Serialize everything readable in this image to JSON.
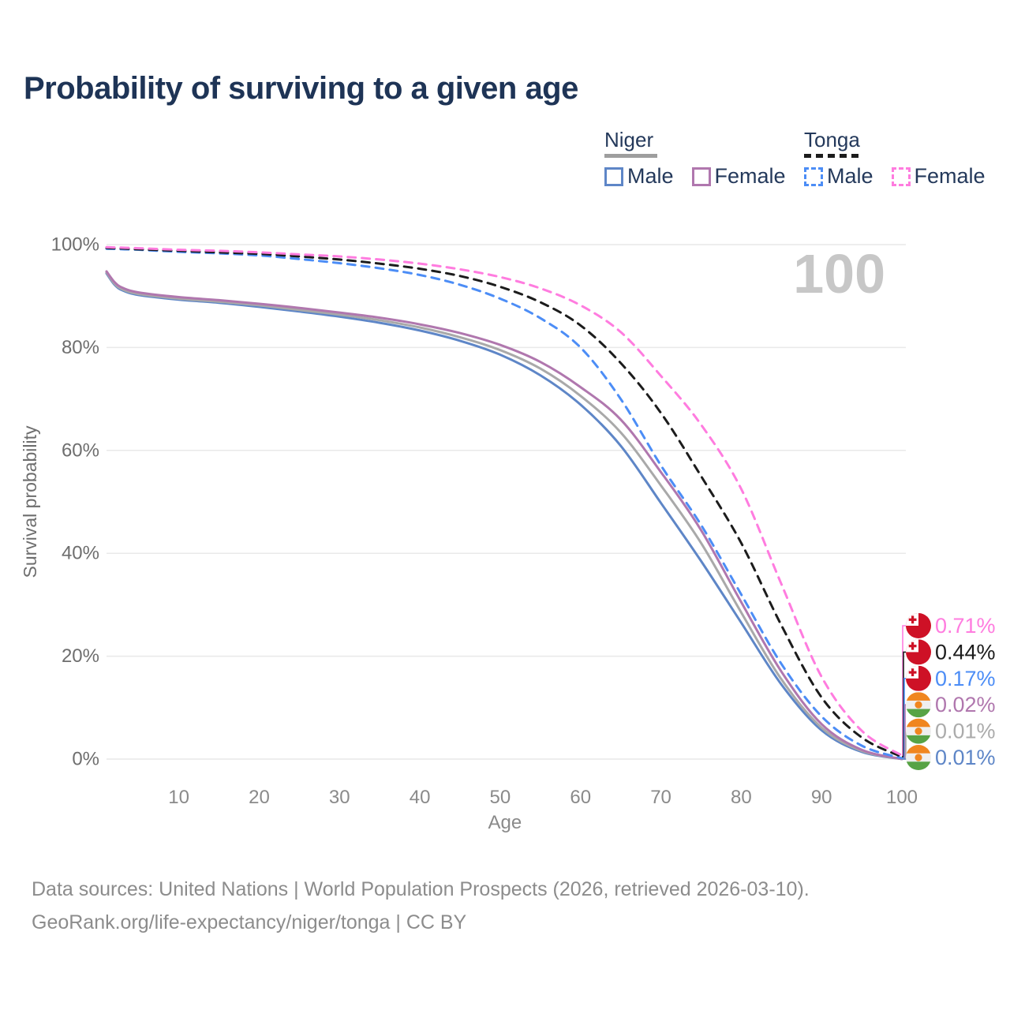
{
  "title": "Probability of surviving to a given age",
  "watermark": "100",
  "legend": {
    "groups": [
      {
        "id": "niger",
        "label": "Niger",
        "line_style": "solid",
        "rule_color": "#9E9E9E",
        "items": [
          {
            "id": "niger_male",
            "label": "Male",
            "color": "#5E86C7"
          },
          {
            "id": "niger_female",
            "label": "Female",
            "color": "#B077AE"
          }
        ]
      },
      {
        "id": "tonga",
        "label": "Tonga",
        "line_style": "dashed",
        "rule_color": "#1C1C1C",
        "items": [
          {
            "id": "tonga_male",
            "label": "Male",
            "color": "#4C8DF6"
          },
          {
            "id": "tonga_female",
            "label": "Female",
            "color": "#FF7CDF"
          }
        ]
      }
    ]
  },
  "footer": {
    "line1": "Data sources: United Nations | World Population Prospects (2026, retrieved 2026-03-10).",
    "line2": "GeoRank.org/life-expectancy/niger/tonga | CC BY"
  },
  "chart_data": {
    "type": "line",
    "title": "Probability of surviving to a given age",
    "xlabel": "Age",
    "ylabel": "Survival probability",
    "xlim": [
      1,
      100
    ],
    "ylim": [
      0,
      100
    ],
    "x_ticks": [
      10,
      20,
      30,
      40,
      50,
      60,
      70,
      80,
      90,
      100
    ],
    "y_ticks": [
      0,
      20,
      40,
      60,
      80,
      100
    ],
    "y_tick_suffix": "%",
    "grid": "horizontal",
    "highlighted_age": "100",
    "x": [
      1,
      2,
      3,
      5,
      10,
      15,
      20,
      25,
      30,
      35,
      40,
      45,
      50,
      55,
      60,
      65,
      70,
      75,
      80,
      85,
      90,
      95,
      100
    ],
    "series": [
      {
        "id": "niger_male",
        "name": "Niger Male",
        "color": "#5E86C7",
        "dash": false,
        "values": [
          94.4,
          92.2,
          91.1,
          90.2,
          89.3,
          88.7,
          87.9,
          87.0,
          86.0,
          84.8,
          83.3,
          81.3,
          78.6,
          74.6,
          68.9,
          60.9,
          49.8,
          38.5,
          26.5,
          14.5,
          5.6,
          1.4,
          0.01
        ]
      },
      {
        "id": "niger_both",
        "name": "Niger",
        "color": "#A9A9A9",
        "dash": false,
        "values": [
          94.6,
          92.4,
          91.3,
          90.4,
          89.5,
          88.9,
          88.2,
          87.3,
          86.4,
          85.3,
          83.9,
          82.0,
          79.5,
          75.9,
          70.6,
          63.5,
          53.2,
          42.0,
          28.5,
          15.5,
          6.1,
          1.6,
          0.01
        ]
      },
      {
        "id": "niger_female",
        "name": "Niger Female",
        "color": "#B077AE",
        "dash": false,
        "values": [
          94.8,
          92.7,
          91.6,
          90.7,
          89.8,
          89.2,
          88.5,
          87.7,
          86.8,
          85.8,
          84.5,
          82.8,
          80.5,
          77.2,
          72.3,
          66.0,
          55.8,
          44.5,
          30.5,
          17.0,
          6.8,
          1.8,
          0.02
        ]
      },
      {
        "id": "tonga_male",
        "name": "Tonga Male",
        "color": "#4C8DF6",
        "dash": true,
        "values": [
          99.2,
          99.15,
          99.1,
          99.0,
          98.6,
          98.3,
          97.9,
          97.2,
          96.4,
          95.4,
          94.1,
          92.2,
          89.5,
          85.7,
          80.0,
          70.0,
          57.1,
          45.5,
          32.0,
          18.5,
          8.3,
          2.6,
          0.17
        ]
      },
      {
        "id": "tonga_both",
        "name": "Tonga",
        "color": "#1C1C1C",
        "dash": true,
        "values": [
          99.35,
          99.3,
          99.25,
          99.1,
          98.8,
          98.5,
          98.2,
          97.7,
          97.1,
          96.3,
          95.3,
          93.9,
          91.8,
          88.8,
          84.3,
          77.0,
          67.3,
          55.0,
          42.0,
          26.0,
          12.0,
          4.2,
          0.44
        ]
      },
      {
        "id": "tonga_female",
        "name": "Tonga Female",
        "color": "#FF7CDF",
        "dash": true,
        "values": [
          99.5,
          99.45,
          99.4,
          99.3,
          99.0,
          98.8,
          98.5,
          98.1,
          97.7,
          97.1,
          96.3,
          95.2,
          93.7,
          91.5,
          88.2,
          83.0,
          74.5,
          65.0,
          52.5,
          34.0,
          16.0,
          5.5,
          0.71
        ]
      }
    ],
    "end_labels": [
      {
        "series": "tonga_female",
        "flag": "tonga",
        "text": "0.71%",
        "color": "#FF7CDF"
      },
      {
        "series": "tonga_both",
        "flag": "tonga",
        "text": "0.44%",
        "color": "#1C1C1C"
      },
      {
        "series": "tonga_male",
        "flag": "tonga",
        "text": "0.17%",
        "color": "#4C8DF6"
      },
      {
        "series": "niger_female",
        "flag": "niger",
        "text": "0.02%",
        "color": "#B077AE"
      },
      {
        "series": "niger_both",
        "flag": "niger",
        "text": "0.01%",
        "color": "#ABABAB"
      },
      {
        "series": "niger_male",
        "flag": "niger",
        "text": "0.01%",
        "color": "#5E86C7"
      }
    ]
  }
}
